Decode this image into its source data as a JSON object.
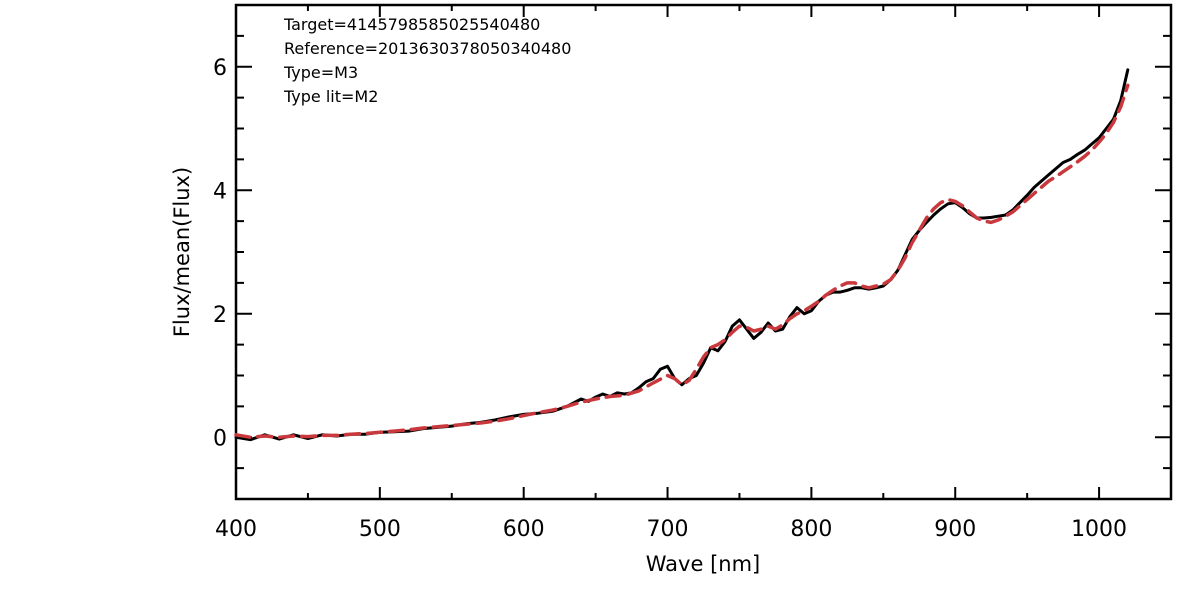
{
  "chart_data": {
    "type": "line",
    "xlabel": "Wave [nm]",
    "ylabel": "Flux/mean(Flux)",
    "xlim": [
      400,
      1050
    ],
    "ylim": [
      -1,
      7
    ],
    "x_ticks": [
      400,
      500,
      600,
      700,
      800,
      900,
      1000
    ],
    "y_ticks": [
      0,
      2,
      4,
      6
    ],
    "grid": false,
    "annotations": [
      "Target=4145798585025540480",
      "Reference=2013630378050340480",
      "Type=M3",
      "Type lit=M2"
    ],
    "series": [
      {
        "style": "solid",
        "color": "#000000",
        "x": [
          400,
          410,
          420,
          430,
          440,
          450,
          460,
          470,
          480,
          490,
          500,
          510,
          520,
          530,
          540,
          550,
          560,
          570,
          580,
          590,
          600,
          610,
          620,
          630,
          640,
          645,
          650,
          655,
          660,
          665,
          670,
          675,
          680,
          685,
          690,
          695,
          700,
          705,
          710,
          715,
          720,
          725,
          730,
          735,
          740,
          745,
          750,
          755,
          760,
          765,
          770,
          775,
          780,
          785,
          790,
          795,
          800,
          805,
          810,
          815,
          820,
          825,
          830,
          835,
          840,
          845,
          850,
          855,
          860,
          865,
          870,
          875,
          880,
          885,
          890,
          895,
          900,
          905,
          910,
          915,
          920,
          925,
          930,
          935,
          940,
          945,
          950,
          955,
          960,
          965,
          970,
          975,
          980,
          985,
          990,
          995,
          1000,
          1005,
          1010,
          1015,
          1020
        ],
        "y": [
          0.0,
          -0.04,
          0.04,
          -0.03,
          0.04,
          -0.02,
          0.04,
          0.02,
          0.05,
          0.05,
          0.08,
          0.09,
          0.1,
          0.14,
          0.16,
          0.18,
          0.22,
          0.24,
          0.28,
          0.33,
          0.37,
          0.39,
          0.42,
          0.5,
          0.62,
          0.58,
          0.65,
          0.7,
          0.66,
          0.72,
          0.7,
          0.72,
          0.8,
          0.9,
          0.95,
          1.1,
          1.15,
          0.95,
          0.85,
          0.95,
          1.0,
          1.2,
          1.45,
          1.4,
          1.55,
          1.8,
          1.9,
          1.75,
          1.6,
          1.7,
          1.85,
          1.72,
          1.75,
          1.95,
          2.1,
          2.0,
          2.05,
          2.2,
          2.3,
          2.35,
          2.35,
          2.38,
          2.42,
          2.42,
          2.4,
          2.42,
          2.45,
          2.55,
          2.7,
          2.95,
          3.2,
          3.35,
          3.48,
          3.6,
          3.7,
          3.78,
          3.8,
          3.72,
          3.62,
          3.55,
          3.55,
          3.56,
          3.58,
          3.6,
          3.68,
          3.8,
          3.92,
          4.05,
          4.15,
          4.25,
          4.35,
          4.45,
          4.5,
          4.58,
          4.65,
          4.75,
          4.85,
          5.0,
          5.15,
          5.45,
          5.95
        ]
      },
      {
        "style": "dashed",
        "color": "#c8383c",
        "x": [
          400,
          410,
          420,
          430,
          440,
          450,
          460,
          470,
          480,
          490,
          500,
          510,
          520,
          530,
          540,
          550,
          560,
          570,
          580,
          590,
          600,
          610,
          620,
          630,
          640,
          650,
          660,
          670,
          680,
          690,
          700,
          705,
          710,
          715,
          720,
          725,
          730,
          735,
          740,
          745,
          750,
          755,
          760,
          765,
          770,
          775,
          780,
          785,
          790,
          795,
          800,
          805,
          810,
          815,
          820,
          825,
          830,
          835,
          840,
          845,
          850,
          855,
          860,
          865,
          870,
          875,
          880,
          885,
          890,
          895,
          900,
          905,
          910,
          915,
          920,
          925,
          930,
          935,
          940,
          945,
          950,
          955,
          960,
          965,
          970,
          975,
          980,
          985,
          990,
          995,
          1000,
          1005,
          1010,
          1015,
          1020
        ],
        "y": [
          0.04,
          0.0,
          0.02,
          0.0,
          0.02,
          0.01,
          0.03,
          0.03,
          0.05,
          0.06,
          0.08,
          0.1,
          0.12,
          0.15,
          0.17,
          0.19,
          0.21,
          0.23,
          0.26,
          0.3,
          0.35,
          0.4,
          0.44,
          0.5,
          0.57,
          0.62,
          0.66,
          0.68,
          0.75,
          0.88,
          1.0,
          0.95,
          0.85,
          0.92,
          1.1,
          1.3,
          1.45,
          1.5,
          1.58,
          1.7,
          1.8,
          1.78,
          1.72,
          1.75,
          1.8,
          1.75,
          1.82,
          1.92,
          2.0,
          2.05,
          2.12,
          2.2,
          2.3,
          2.38,
          2.45,
          2.5,
          2.5,
          2.45,
          2.42,
          2.45,
          2.48,
          2.55,
          2.7,
          2.9,
          3.15,
          3.35,
          3.55,
          3.7,
          3.8,
          3.85,
          3.82,
          3.75,
          3.65,
          3.55,
          3.5,
          3.48,
          3.52,
          3.58,
          3.65,
          3.75,
          3.85,
          3.95,
          4.05,
          4.15,
          4.22,
          4.3,
          4.38,
          4.46,
          4.55,
          4.65,
          4.78,
          4.92,
          5.1,
          5.35,
          5.7
        ]
      }
    ]
  }
}
